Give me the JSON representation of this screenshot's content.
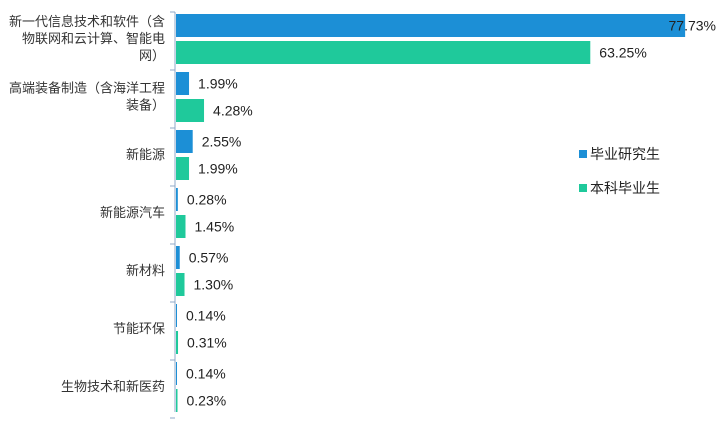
{
  "chart_data": {
    "type": "bar",
    "orientation": "horizontal",
    "title": "",
    "xlabel": "",
    "ylabel": "",
    "xlim": [
      0,
      80
    ],
    "grid": false,
    "legend_position": "right",
    "categories": [
      "新一代信息技术和软件（含物联网和云计算、智能电网）",
      "高端装备制造（含海洋工程装备）",
      "新能源",
      "新能源汽车",
      "新材料",
      "节能环保",
      "生物技术和新医药"
    ],
    "category_lines": [
      [
        "新一代信息技术和软件（含",
        "物联网和云计算、智能电",
        "网）"
      ],
      [
        "高端装备制造（含海洋工程",
        "装备）"
      ],
      [
        "新能源"
      ],
      [
        "新能源汽车"
      ],
      [
        "新材料"
      ],
      [
        "节能环保"
      ],
      [
        "生物技术和新医药"
      ]
    ],
    "series": [
      {
        "name": "毕业研究生",
        "color": "#1c8fd6",
        "values": [
          77.73,
          1.99,
          2.55,
          0.28,
          0.57,
          0.14,
          0.14
        ],
        "labels": [
          "77.73%",
          "1.99%",
          "2.55%",
          "0.28%",
          "0.57%",
          "0.14%",
          "0.14%"
        ]
      },
      {
        "name": "本科毕业生",
        "color": "#1fc99b",
        "values": [
          63.25,
          4.28,
          1.99,
          1.45,
          1.3,
          0.31,
          0.23
        ],
        "labels": [
          "63.25%",
          "4.28%",
          "1.99%",
          "1.45%",
          "1.30%",
          "0.31%",
          "0.23%"
        ]
      }
    ]
  }
}
